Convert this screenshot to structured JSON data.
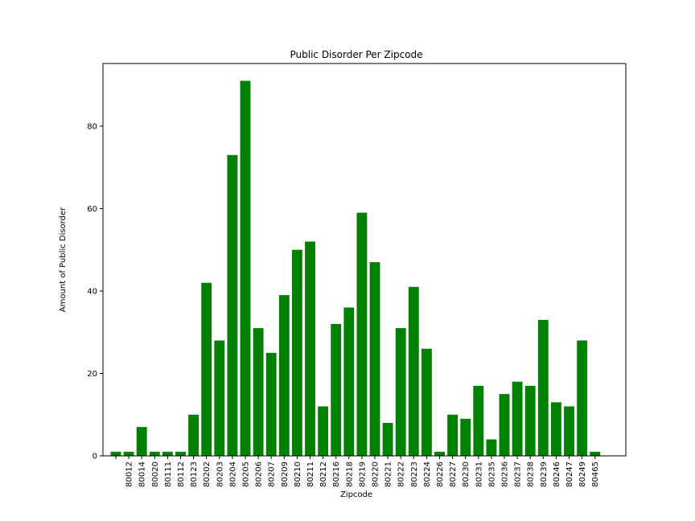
{
  "chart_data": {
    "type": "bar",
    "title": "Public Disorder Per Zipcode",
    "x_label": "Zipcode",
    "y_label": "Amount of Public Disorder",
    "categories": [
      null,
      "80012",
      "80014",
      "80020",
      "80111",
      "80112",
      "80123",
      "80202",
      "80203",
      "80204",
      "80205",
      "80206",
      "80207",
      "80209",
      "80210",
      "80211",
      "80212",
      "80216",
      "80218",
      "80219",
      "80220",
      "80221",
      "80222",
      "80223",
      "80224",
      "80226",
      "80227",
      "80230",
      "80231",
      "80235",
      "80236",
      "80237",
      "80238",
      "80239",
      "80246",
      "80247",
      "80249",
      "80465"
    ],
    "values": [
      1,
      1,
      7,
      1,
      1,
      1,
      10,
      42,
      28,
      73,
      91,
      31,
      25,
      39,
      50,
      52,
      12,
      32,
      36,
      59,
      47,
      8,
      31,
      41,
      26,
      1,
      10,
      9,
      17,
      4,
      15,
      18,
      17,
      33,
      13,
      12,
      28,
      1
    ],
    "color": "#008000",
    "ylim": [
      0,
      95.2
    ],
    "yticks": [
      0,
      20,
      40,
      60,
      80
    ],
    "grid": false
  }
}
